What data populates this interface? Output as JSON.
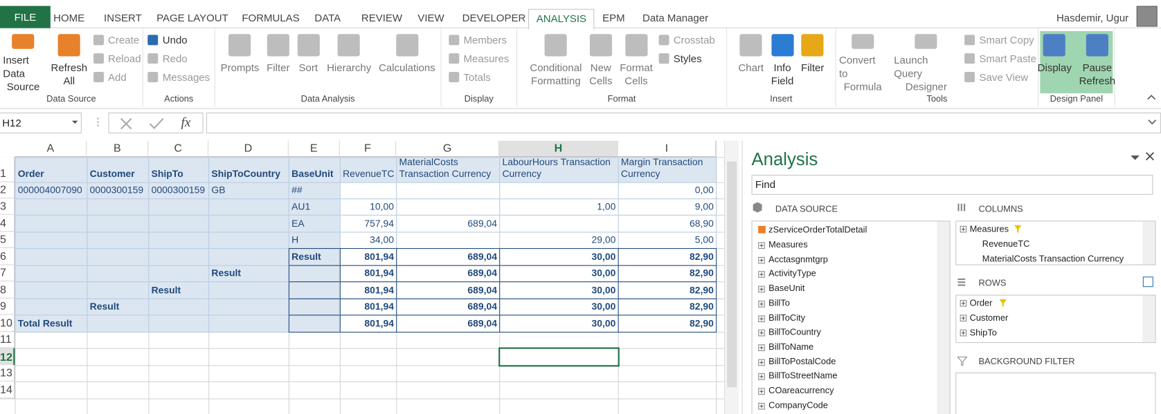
{
  "ribbon": {
    "tabs": [
      {
        "label": "FILE"
      },
      {
        "label": "HOME"
      },
      {
        "label": "INSERT"
      },
      {
        "label": "PAGE LAYOUT"
      },
      {
        "label": "FORMULAS"
      },
      {
        "label": "DATA"
      },
      {
        "label": "REVIEW"
      },
      {
        "label": "VIEW"
      },
      {
        "label": "DEVELOPER"
      },
      {
        "label": "ANALYSIS",
        "active": true
      },
      {
        "label": "EPM"
      },
      {
        "label": "Data Manager"
      }
    ],
    "user": "Hasdemir, Ugur",
    "groups": [
      {
        "name": "Data Source",
        "large": [
          [
            "Insert Data",
            "Source"
          ],
          [
            "Refresh",
            "All"
          ]
        ],
        "small": [
          "Create",
          "Reload",
          "Add"
        ]
      },
      {
        "name": "Actions",
        "small": [
          "Undo",
          "Redo",
          "Messages"
        ]
      },
      {
        "name": "Data Analysis",
        "large": [
          [
            "Prompts"
          ],
          [
            "Filter"
          ],
          [
            "Sort"
          ],
          [
            "Hierarchy"
          ],
          [
            "Calculations"
          ]
        ]
      },
      {
        "name": "Display",
        "small": [
          "Members",
          "Measures",
          "Totals"
        ]
      },
      {
        "name": "Format",
        "large": [
          [
            "Conditional",
            "Formatting"
          ],
          [
            "New",
            "Cells"
          ],
          [
            "Format",
            "Cells"
          ]
        ],
        "small": [
          "Crosstab",
          "Styles"
        ]
      },
      {
        "name": "Insert",
        "large": [
          [
            "Chart"
          ],
          [
            "Info",
            "Field"
          ],
          [
            "Filter"
          ]
        ]
      },
      {
        "name": "Tools",
        "large": [
          [
            "Convert to",
            "Formula"
          ],
          [
            "Launch Query",
            "Designer"
          ]
        ],
        "small": [
          "Smart Copy",
          "Smart Paste",
          "Save View"
        ]
      },
      {
        "name": "Design Panel",
        "large": [
          [
            "Display"
          ],
          [
            "Pause",
            "Refresh"
          ]
        ],
        "highlight": true
      }
    ]
  },
  "formula_bar": {
    "name_box": "H12",
    "fx": "fx"
  },
  "sheet": {
    "columns": [
      "A",
      "B",
      "C",
      "D",
      "E",
      "F",
      "G",
      "H",
      "I"
    ],
    "row_numbers": [
      1,
      2,
      3,
      4,
      5,
      6,
      7,
      8,
      9,
      10,
      11,
      12,
      13,
      14
    ],
    "rows": [
      [
        "Order",
        "Customer",
        "ShipTo",
        "ShipToCountry",
        "BaseUnit",
        "RevenueTC",
        "MaterialCosts Transaction Currency",
        "LabourHours Transaction Currency",
        "Margin Transaction Currency"
      ],
      [
        "000004007090",
        "0000300159",
        "0000300159",
        "GB",
        "##",
        null,
        null,
        null,
        "0,00"
      ],
      [
        null,
        null,
        null,
        null,
        "AU1",
        "10,00",
        null,
        "1,00",
        "9,00"
      ],
      [
        null,
        null,
        null,
        null,
        "EA",
        "757,94",
        "689,04",
        null,
        "68,90"
      ],
      [
        null,
        null,
        null,
        null,
        "H",
        "34,00",
        null,
        "29,00",
        "5,00"
      ],
      [
        null,
        null,
        null,
        null,
        "Result",
        "801,94",
        "689,04",
        "30,00",
        "82,90"
      ],
      [
        null,
        null,
        null,
        "Result",
        null,
        "801,94",
        "689,04",
        "30,00",
        "82,90"
      ],
      [
        null,
        null,
        "Result",
        null,
        null,
        "801,94",
        "689,04",
        "30,00",
        "82,90"
      ],
      [
        null,
        "Result",
        null,
        null,
        null,
        "801,94",
        "689,04",
        "30,00",
        "82,90"
      ],
      [
        "Total Result",
        null,
        null,
        null,
        null,
        "801,94",
        "689,04",
        "30,00",
        "82,90"
      ]
    ],
    "selected": {
      "row": 11,
      "column": 7
    }
  },
  "analysis": {
    "title": "Analysis",
    "search": "Find",
    "data_source": {
      "label": "DATA SOURCE",
      "root": "zServiceOrderTotalDetail",
      "items": [
        "Measures",
        "Acctasgnmtgrp",
        "ActivityType",
        "BaseUnit",
        "BillTo",
        "BillToCity",
        "BillToCountry",
        "BillToName",
        "BillToPostalCode",
        "BillToStreetName",
        "COareacurrency",
        "CompanyCode"
      ]
    },
    "columns": {
      "label": "COLUMNS",
      "root": "Measures",
      "items": [
        "RevenueTC",
        "MaterialCosts Transaction Currency"
      ]
    },
    "rows": {
      "label": "ROWS",
      "items": [
        "Order",
        "Customer",
        "ShipTo"
      ]
    },
    "background_filter": {
      "label": "BACKGROUND FILTER"
    }
  }
}
